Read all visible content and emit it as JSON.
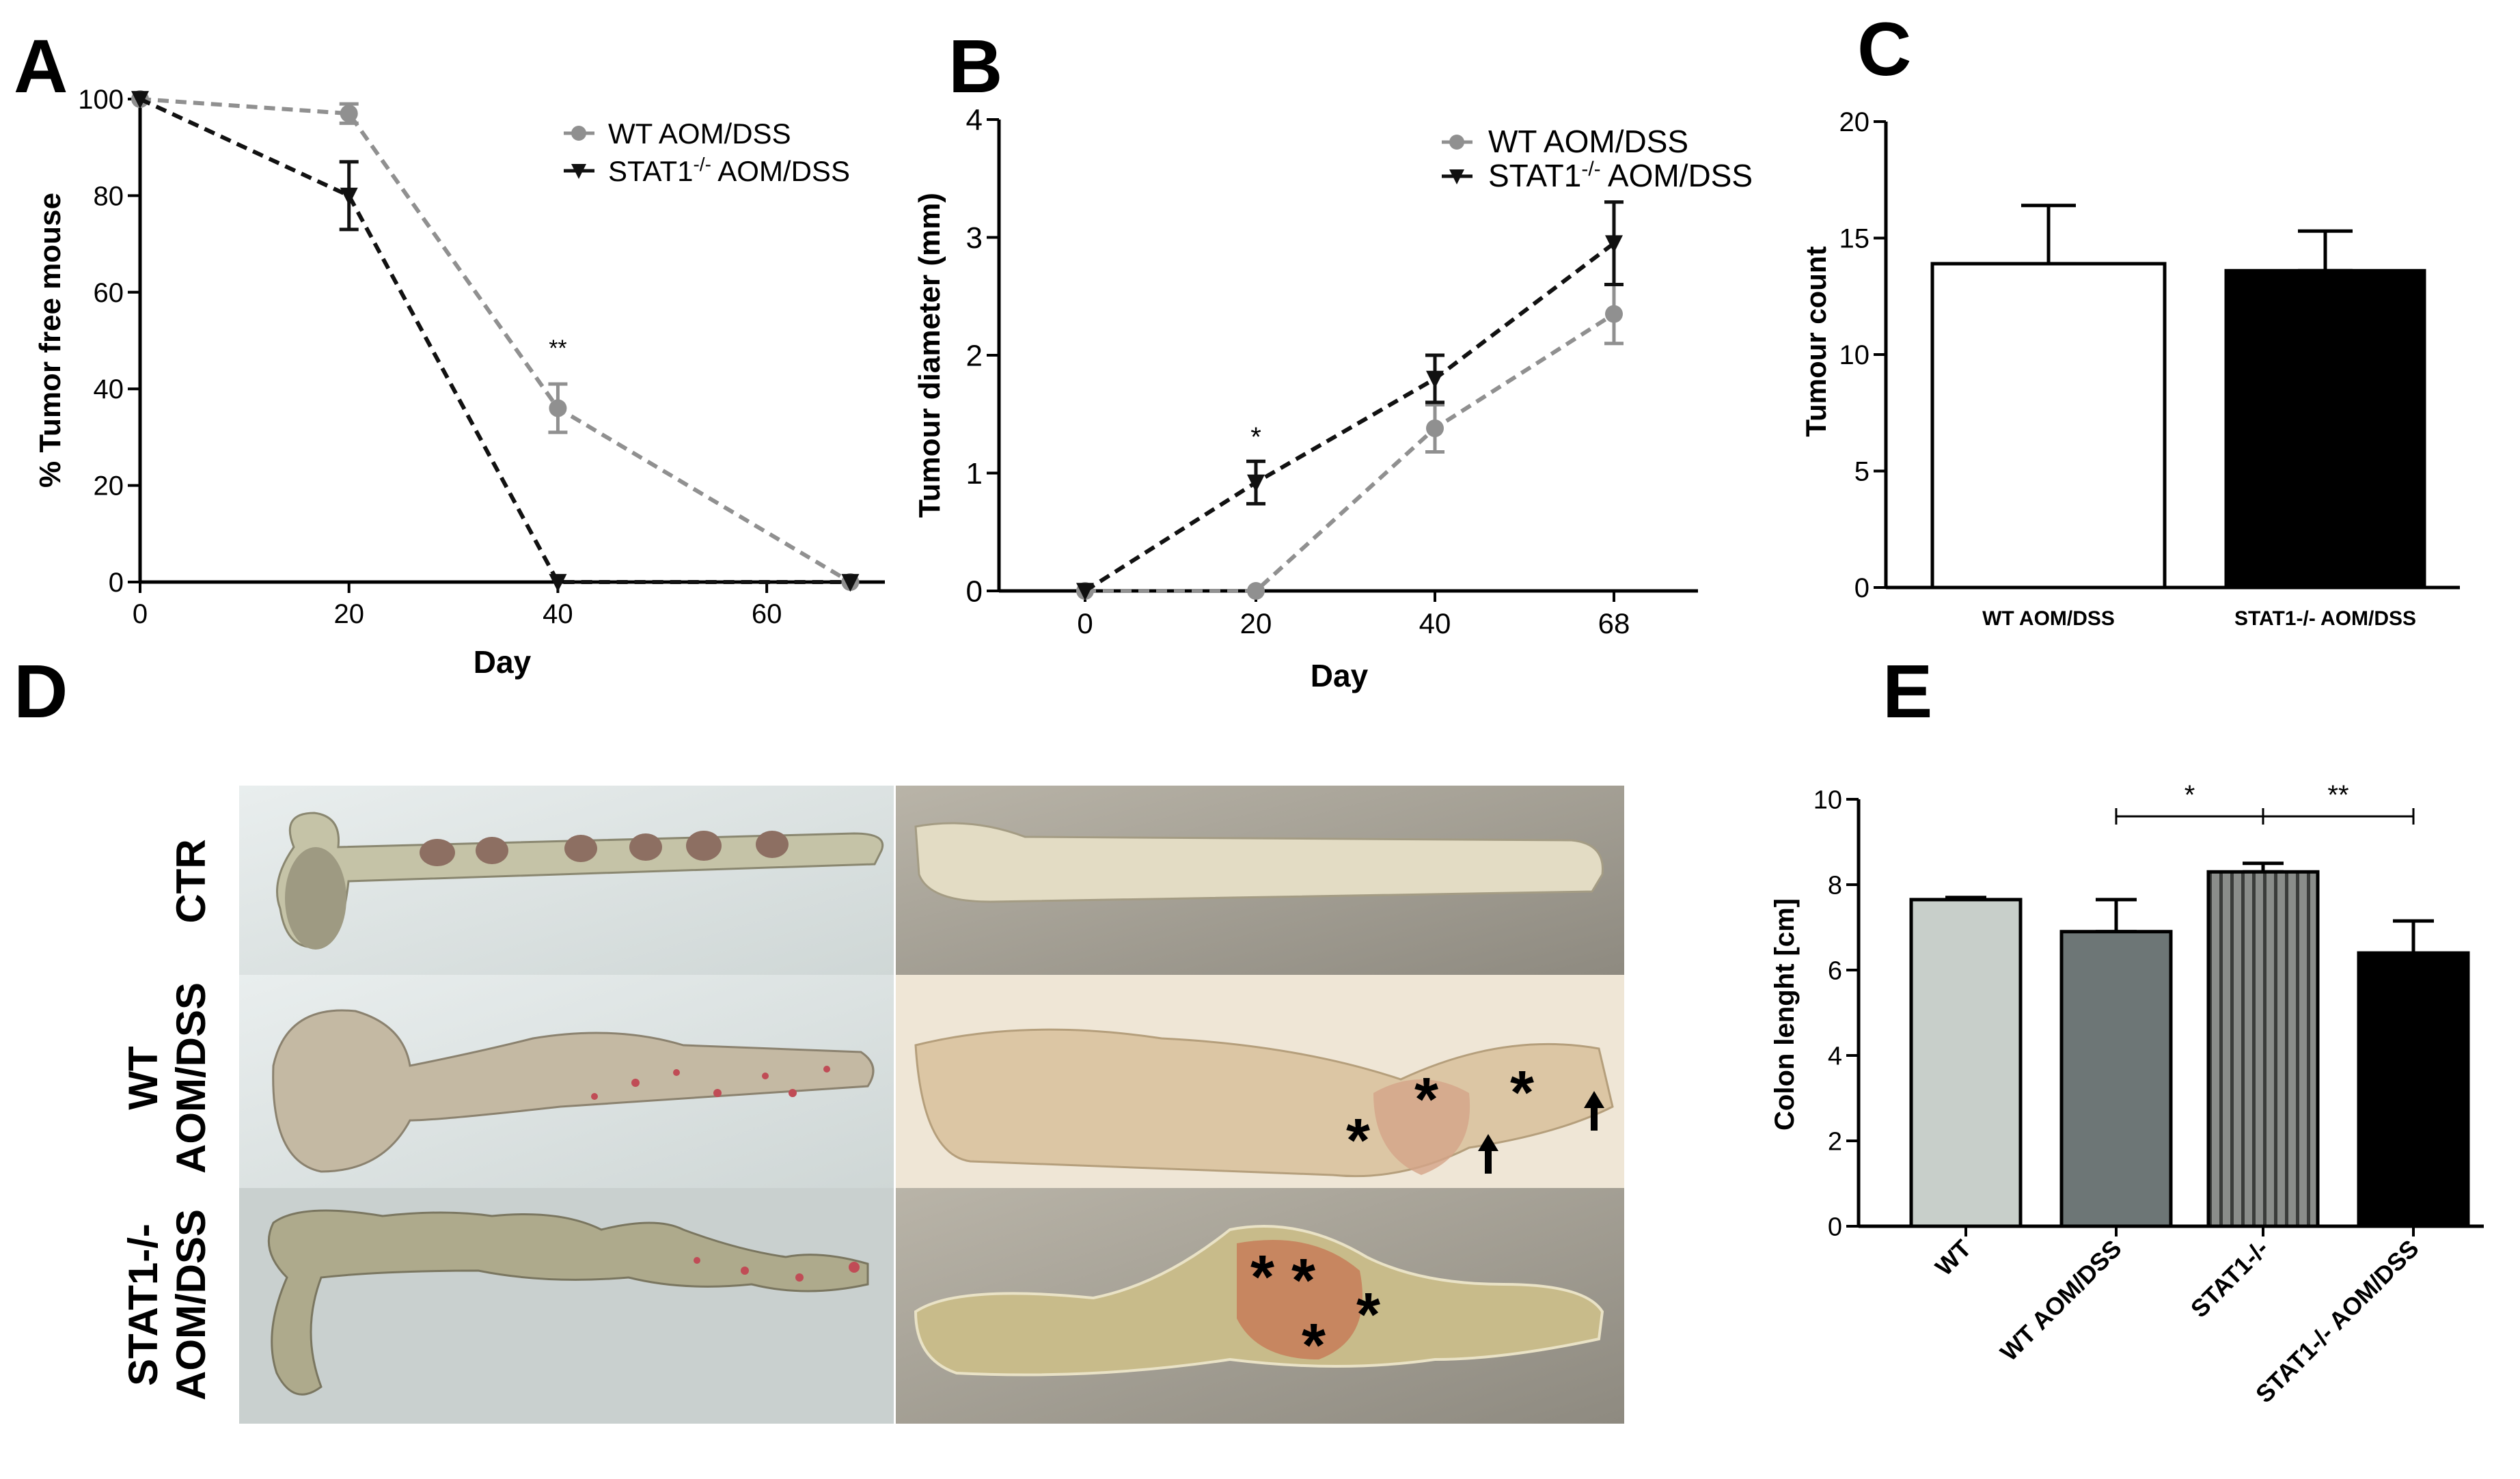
{
  "colors": {
    "wt": "#909090",
    "ko": "#111111",
    "axis": "#000000"
  },
  "panels": {
    "A": "A",
    "B": "B",
    "C": "C",
    "D": "D",
    "E": "E"
  },
  "chart_data": [
    {
      "id": "A",
      "type": "line",
      "xlabel": "Day",
      "ylabel": "% Tumor free mouse",
      "xlim": [
        0,
        70
      ],
      "ylim": [
        0,
        100
      ],
      "xticks": [
        0,
        20,
        40,
        60
      ],
      "yticks": [
        0,
        20,
        40,
        60,
        80,
        100
      ],
      "series": [
        {
          "name": "WT AOM/DSS",
          "x": [
            0,
            20,
            40,
            68
          ],
          "values": [
            100,
            97,
            36,
            0
          ],
          "err": [
            0,
            2,
            5,
            0
          ]
        },
        {
          "name": "STAT1-/- AOM/DSS",
          "name_main": "STAT1",
          "name_sup": "-/-",
          "name_rest": " AOM/DSS",
          "x": [
            0,
            20,
            40,
            68
          ],
          "values": [
            100,
            80,
            0,
            0
          ],
          "err": [
            0,
            7,
            0,
            0
          ]
        }
      ],
      "annotations": [
        {
          "text": "**",
          "x": 40,
          "y": 44
        }
      ]
    },
    {
      "id": "B",
      "type": "line",
      "xlabel": "Day",
      "ylabel": "Tumour diameter (mm)",
      "ylim": [
        0,
        4
      ],
      "categories": [
        "0",
        "20",
        "40",
        "68"
      ],
      "yticks": [
        0,
        1,
        2,
        3,
        4
      ],
      "series": [
        {
          "name": "WT AOM/DSS",
          "values": [
            0,
            0,
            1.38,
            2.35
          ],
          "err": [
            0,
            0,
            0.2,
            0.25
          ]
        },
        {
          "name": "STAT1-/- AOM/DSS",
          "name_main": "STAT1",
          "name_sup": "-/-",
          "name_rest": " AOM/DSS",
          "values": [
            0,
            0.92,
            1.8,
            2.95
          ],
          "err": [
            0,
            0.18,
            0.2,
            0.35
          ]
        }
      ],
      "annotations": [
        {
          "text": "*",
          "cat": 1,
          "y": 1.3
        }
      ]
    },
    {
      "id": "C",
      "type": "bar",
      "ylabel": "Tumour count",
      "ylim": [
        0,
        20
      ],
      "yticks": [
        0,
        5,
        10,
        15,
        20
      ],
      "categories": [
        "WT AOM/DSS",
        "STAT1-/- AOM/DSS"
      ],
      "values": [
        13.9,
        13.6
      ],
      "err": [
        2.5,
        1.7
      ]
    },
    {
      "id": "E",
      "type": "bar",
      "ylabel": "Colon lenght [cm]",
      "ylim": [
        0,
        10
      ],
      "yticks": [
        0,
        2,
        4,
        6,
        8,
        10
      ],
      "categories": [
        "WT",
        "WT AOM/DSS",
        "STAT1-/-",
        "STAT1-/- AOM/DSS"
      ],
      "values": [
        7.65,
        6.9,
        8.3,
        6.4
      ],
      "err": [
        0.05,
        0.75,
        0.2,
        0.75
      ],
      "significance": [
        {
          "from": 1,
          "to": 2,
          "label": "*"
        },
        {
          "from": 2,
          "to": 3,
          "label": "**"
        }
      ]
    }
  ],
  "photos": {
    "rows": [
      "CTR",
      "WT AOM/DSS",
      "STAT1-/- AOM/DSS"
    ],
    "row_label_lines": [
      [
        "CTR"
      ],
      [
        "WT",
        "AOM/DSS"
      ],
      [
        "STAT1-/-",
        "AOM/DSS"
      ]
    ]
  }
}
